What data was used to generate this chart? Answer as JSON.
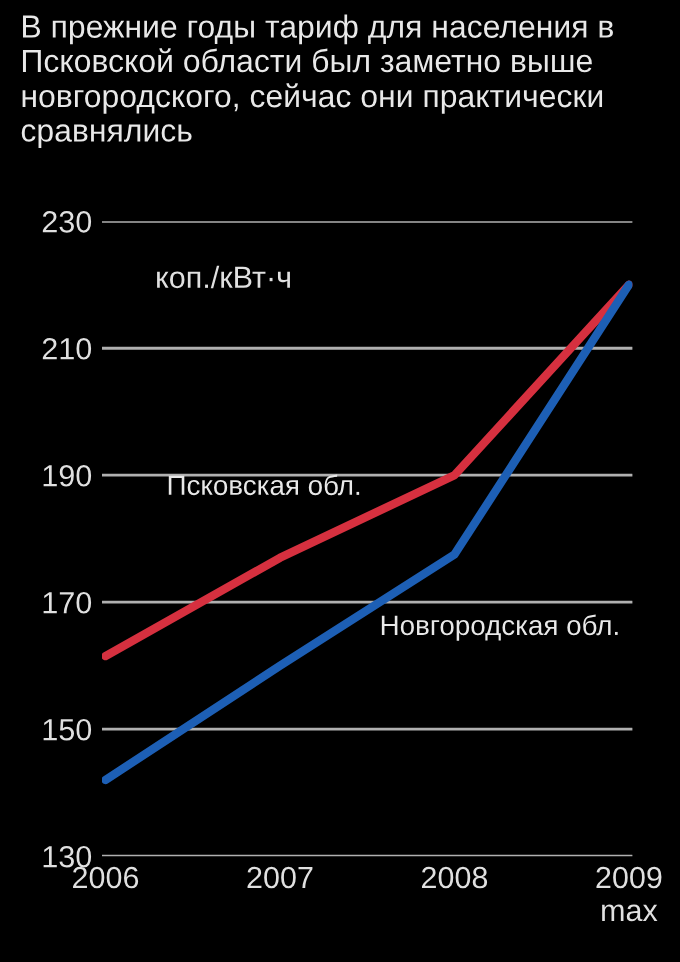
{
  "chart_data": {
    "type": "line",
    "title": "В прежние годы тариф для населения в Псковской области был заметно выше новгородского, сейчас они практически сравнялись",
    "categories": [
      "2006",
      "2007",
      "2008",
      "2009\nmax"
    ],
    "series": [
      {
        "name": "Псковская обл.",
        "color": "#d6303f",
        "values": [
          161.5,
          177,
          190,
          220
        ]
      },
      {
        "name": "Новгородская обл.",
        "color": "#1d5fb5",
        "values": [
          142,
          160,
          177.5,
          220
        ]
      }
    ],
    "annotations": [
      "коп./кВт·ч"
    ],
    "ylim": [
      130,
      230
    ],
    "yticks": [
      130,
      150,
      170,
      190,
      210,
      230
    ],
    "grid": "y",
    "marker": "none",
    "line_style": "solid",
    "legend": false
  }
}
